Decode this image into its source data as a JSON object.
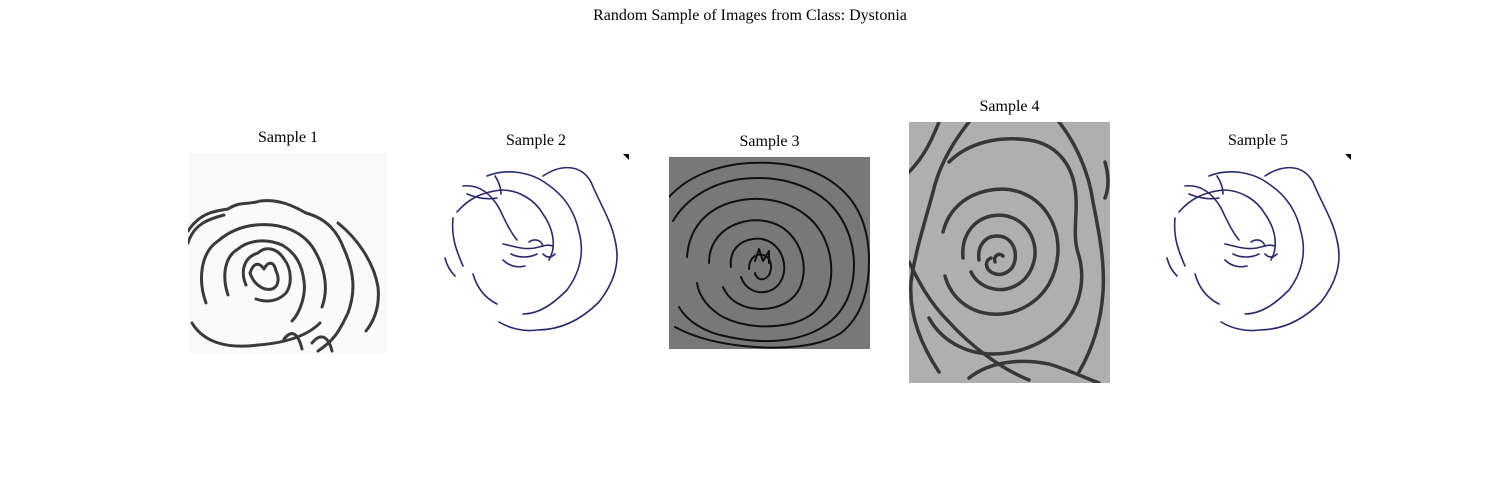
{
  "figure": {
    "title": "Random Sample of Images from Class: Dystonia"
  },
  "samples": [
    {
      "title": "Sample 1",
      "background": "#fafafa",
      "stroke": "#3a3a3a"
    },
    {
      "title": "Sample 2",
      "background": "#ffffff",
      "stroke": "#2a2a6a"
    },
    {
      "title": "Sample 3",
      "background": "#787878",
      "stroke": "#111111"
    },
    {
      "title": "Sample 4",
      "background": "#afafaf",
      "stroke": "#2b2b2b"
    },
    {
      "title": "Sample 5",
      "background": "#ffffff",
      "stroke": "#2a2a6a"
    }
  ]
}
